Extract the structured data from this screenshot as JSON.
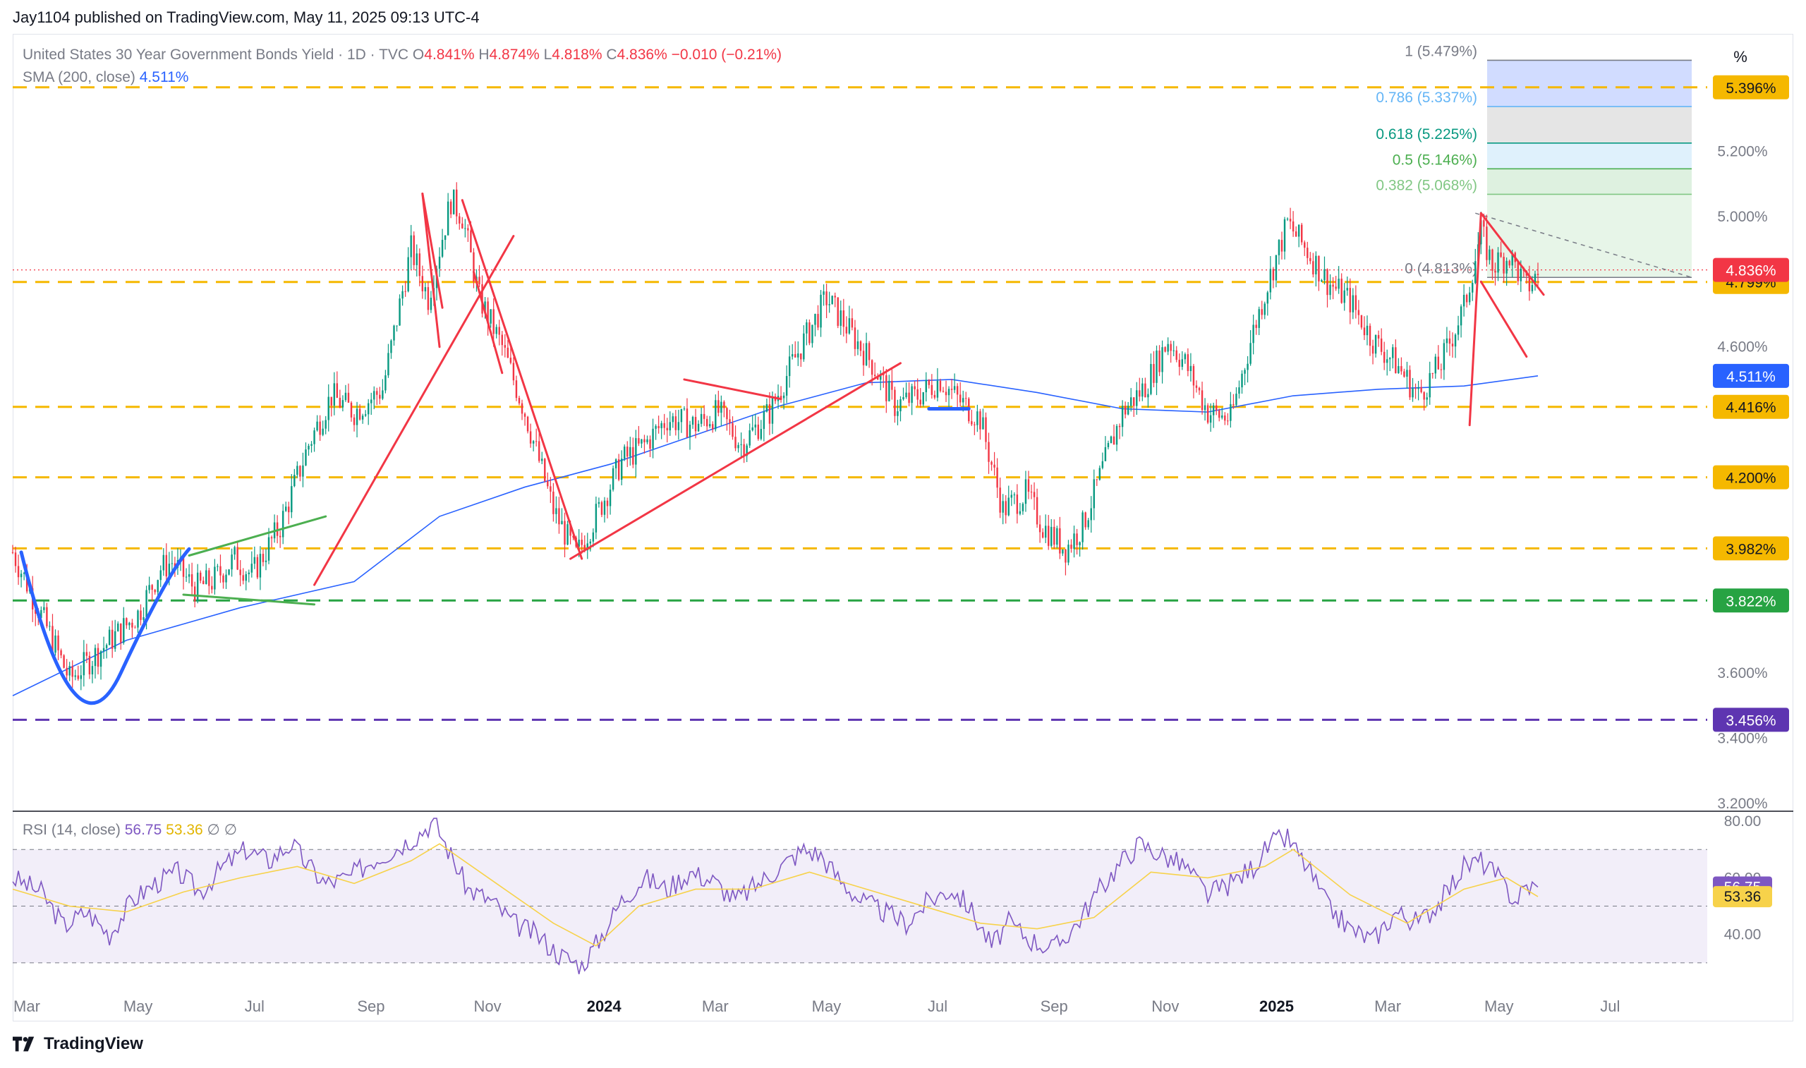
{
  "header": {
    "publisher_line": "Jay1104 published on TradingView.com, May 11, 2025 09:13 UTC-4"
  },
  "legend": {
    "symbol": "United States 30 Year Government Bonds Yield · 1D · TVC",
    "o_label": "O",
    "o_value": "4.841%",
    "h_label": "H",
    "h_value": "4.874%",
    "l_label": "L",
    "l_value": "4.818%",
    "c_label": "C",
    "c_value": "4.836%",
    "change": "−0.010 (−0.21%)",
    "sma_label": "SMA (200, close)",
    "sma_value": "4.511%",
    "rsi_label": "RSI (14, close)",
    "rsi_value": "56.75",
    "rsi_ma_value": "53.36",
    "null_glyph_1": "∅",
    "null_glyph_2": "∅"
  },
  "toolbar": {
    "percent_button": "%"
  },
  "brand": {
    "name": "TradingView",
    "icon": "tradingview-logo-icon"
  },
  "colors": {
    "up": "#089981",
    "down": "#f23645",
    "sma": "#2962ff",
    "level": "#f5b800",
    "support_green": "#27a343",
    "support_purple": "#5e35b1",
    "trend_red": "#f23645",
    "trend_green": "#4caf50",
    "cup_blue": "#2962ff",
    "rsi_line": "#7e57c2",
    "rsi_ma": "#f7d24a"
  },
  "chart_data": {
    "type": "candlestick",
    "title": "United States 30 Year Government Bonds Yield · 1D · TVC",
    "y_unit": "%",
    "ylim": [
      3.18,
      5.56
    ],
    "x_ticks": [
      "Mar",
      "May",
      "Jul",
      "Sep",
      "Nov",
      "2024",
      "Mar",
      "May",
      "Jul",
      "Sep",
      "Nov",
      "2025",
      "Mar",
      "May",
      "Jul"
    ],
    "x_tick_bold": [
      false,
      false,
      false,
      false,
      false,
      true,
      false,
      false,
      false,
      false,
      false,
      true,
      false,
      false,
      false
    ],
    "y_ticks": [
      "5.200%",
      "5.000%",
      "4.600%",
      "3.600%",
      "3.400%",
      "3.200%"
    ],
    "y_tick_values": [
      5.2,
      5.0,
      4.6,
      3.6,
      3.4,
      3.2
    ],
    "price_path": [
      [
        0,
        3.97
      ],
      [
        14,
        3.7
      ],
      [
        20,
        3.58
      ],
      [
        32,
        3.68
      ],
      [
        44,
        3.78
      ],
      [
        52,
        3.92
      ],
      [
        56,
        3.94
      ],
      [
        64,
        3.86
      ],
      [
        70,
        3.88
      ],
      [
        78,
        3.95
      ],
      [
        84,
        3.9
      ],
      [
        94,
        4.05
      ],
      [
        104,
        4.3
      ],
      [
        112,
        4.45
      ],
      [
        120,
        4.4
      ],
      [
        130,
        4.47
      ],
      [
        140,
        4.9
      ],
      [
        146,
        4.75
      ],
      [
        154,
        5.05
      ],
      [
        158,
        5.0
      ],
      [
        164,
        4.75
      ],
      [
        172,
        4.6
      ],
      [
        180,
        4.4
      ],
      [
        190,
        4.1
      ],
      [
        198,
        3.96
      ],
      [
        206,
        4.1
      ],
      [
        214,
        4.25
      ],
      [
        222,
        4.3
      ],
      [
        230,
        4.38
      ],
      [
        240,
        4.36
      ],
      [
        248,
        4.4
      ],
      [
        256,
        4.3
      ],
      [
        266,
        4.4
      ],
      [
        274,
        4.55
      ],
      [
        286,
        4.75
      ],
      [
        294,
        4.65
      ],
      [
        302,
        4.55
      ],
      [
        310,
        4.42
      ],
      [
        318,
        4.45
      ],
      [
        326,
        4.5
      ],
      [
        332,
        4.44
      ],
      [
        340,
        4.38
      ],
      [
        348,
        4.1
      ],
      [
        356,
        4.15
      ],
      [
        362,
        4.05
      ],
      [
        370,
        3.98
      ],
      [
        376,
        4.05
      ],
      [
        382,
        4.2
      ],
      [
        390,
        4.4
      ],
      [
        398,
        4.48
      ],
      [
        406,
        4.62
      ],
      [
        412,
        4.55
      ],
      [
        420,
        4.4
      ],
      [
        428,
        4.38
      ],
      [
        436,
        4.65
      ],
      [
        442,
        4.82
      ],
      [
        448,
        4.98
      ],
      [
        456,
        4.88
      ],
      [
        462,
        4.8
      ],
      [
        470,
        4.74
      ],
      [
        478,
        4.62
      ],
      [
        486,
        4.55
      ],
      [
        494,
        4.45
      ],
      [
        502,
        4.55
      ],
      [
        510,
        4.72
      ],
      [
        516,
        4.95
      ],
      [
        520,
        4.85
      ],
      [
        526,
        4.88
      ],
      [
        532,
        4.78
      ],
      [
        536,
        4.82
      ]
    ],
    "sma_path": [
      [
        0,
        3.53
      ],
      [
        40,
        3.7
      ],
      [
        80,
        3.8
      ],
      [
        120,
        3.88
      ],
      [
        150,
        4.08
      ],
      [
        180,
        4.17
      ],
      [
        210,
        4.24
      ],
      [
        240,
        4.33
      ],
      [
        270,
        4.42
      ],
      [
        300,
        4.49
      ],
      [
        330,
        4.5
      ],
      [
        360,
        4.46
      ],
      [
        390,
        4.41
      ],
      [
        420,
        4.4
      ],
      [
        450,
        4.45
      ],
      [
        480,
        4.47
      ],
      [
        510,
        4.48
      ],
      [
        536,
        4.511
      ]
    ],
    "sma_value": 4.511,
    "last_close": 4.836,
    "horizontal_levels": [
      {
        "value": 5.396,
        "label": "5.396%",
        "color": "#f5b800"
      },
      {
        "value": 4.799,
        "label": "4.799%",
        "color": "#f5b800"
      },
      {
        "value": 4.416,
        "label": "4.416%",
        "color": "#f5b800"
      },
      {
        "value": 4.2,
        "label": "4.200%",
        "color": "#f5b800"
      },
      {
        "value": 3.982,
        "label": "3.982%",
        "color": "#f5b800"
      },
      {
        "value": 3.822,
        "label": "3.822%",
        "color": "#27a343"
      },
      {
        "value": 3.456,
        "label": "3.456%",
        "color": "#5e35b1"
      }
    ],
    "fib": {
      "levels": [
        {
          "ratio": "1",
          "value": 5.479,
          "label": "1 (5.479%)",
          "color": "#787b86",
          "fill": "#c9d6ff"
        },
        {
          "ratio": "0.786",
          "value": 5.337,
          "label": "0.786 (5.337%)",
          "color": "#64b5f6",
          "fill": "#e1e1e1"
        },
        {
          "ratio": "0.618",
          "value": 5.225,
          "label": "0.618 (5.225%)",
          "color": "#089981",
          "fill": "#d9eefc"
        },
        {
          "ratio": "0.5",
          "value": 5.146,
          "label": "0.5 (5.146%)",
          "color": "#4caf50",
          "fill": "#d8efda"
        },
        {
          "ratio": "0.382",
          "value": 5.068,
          "label": "0.382 (5.068%)",
          "color": "#81c784",
          "fill": "#e3f3e4"
        },
        {
          "ratio": "0",
          "value": 4.813,
          "label": "0 (4.813%)",
          "color": "#787b86",
          "fill": "#e8f5e9"
        }
      ]
    },
    "price_badges": [
      {
        "value": 4.836,
        "label": "4.836%",
        "bg": "#f23645",
        "fg": "#ffffff"
      },
      {
        "value": 4.511,
        "label": "4.511%",
        "bg": "#2962ff",
        "fg": "#ffffff"
      }
    ],
    "rsi": {
      "ylim": [
        25,
        82
      ],
      "band": [
        30,
        70
      ],
      "mid": 50,
      "y_ticks": [
        "80.00",
        "60.00",
        "40.00"
      ],
      "y_tick_values": [
        80,
        60,
        40
      ],
      "last_rsi": 56.75,
      "last_ma": 53.36,
      "rsi_path": [
        [
          0,
          60
        ],
        [
          10,
          55
        ],
        [
          18,
          43
        ],
        [
          26,
          48
        ],
        [
          34,
          40
        ],
        [
          42,
          52
        ],
        [
          50,
          58
        ],
        [
          58,
          62
        ],
        [
          66,
          55
        ],
        [
          74,
          64
        ],
        [
          82,
          70
        ],
        [
          90,
          66
        ],
        [
          98,
          72
        ],
        [
          104,
          64
        ],
        [
          110,
          58
        ],
        [
          118,
          60
        ],
        [
          126,
          66
        ],
        [
          134,
          70
        ],
        [
          142,
          75
        ],
        [
          148,
          80
        ],
        [
          154,
          68
        ],
        [
          160,
          56
        ],
        [
          168,
          52
        ],
        [
          176,
          44
        ],
        [
          184,
          40
        ],
        [
          192,
          33
        ],
        [
          200,
          29
        ],
        [
          206,
          38
        ],
        [
          214,
          52
        ],
        [
          222,
          60
        ],
        [
          230,
          56
        ],
        [
          238,
          62
        ],
        [
          246,
          59
        ],
        [
          254,
          52
        ],
        [
          262,
          58
        ],
        [
          270,
          64
        ],
        [
          278,
          70
        ],
        [
          284,
          68
        ],
        [
          290,
          60
        ],
        [
          298,
          52
        ],
        [
          306,
          48
        ],
        [
          314,
          44
        ],
        [
          322,
          52
        ],
        [
          330,
          56
        ],
        [
          336,
          50
        ],
        [
          344,
          36
        ],
        [
          350,
          44
        ],
        [
          358,
          38
        ],
        [
          366,
          35
        ],
        [
          374,
          44
        ],
        [
          382,
          56
        ],
        [
          390,
          66
        ],
        [
          396,
          72
        ],
        [
          404,
          68
        ],
        [
          412,
          64
        ],
        [
          420,
          54
        ],
        [
          428,
          58
        ],
        [
          436,
          64
        ],
        [
          442,
          72
        ],
        [
          448,
          74
        ],
        [
          456,
          62
        ],
        [
          462,
          50
        ],
        [
          470,
          42
        ],
        [
          478,
          38
        ],
        [
          486,
          48
        ],
        [
          494,
          44
        ],
        [
          502,
          52
        ],
        [
          510,
          64
        ],
        [
          516,
          66
        ],
        [
          522,
          60
        ],
        [
          528,
          52
        ],
        [
          532,
          57
        ],
        [
          536,
          56.75
        ]
      ],
      "rsi_ma_path": [
        [
          0,
          56
        ],
        [
          20,
          50
        ],
        [
          40,
          48
        ],
        [
          60,
          55
        ],
        [
          80,
          60
        ],
        [
          100,
          64
        ],
        [
          120,
          58
        ],
        [
          140,
          66
        ],
        [
          150,
          72
        ],
        [
          170,
          58
        ],
        [
          190,
          44
        ],
        [
          205,
          36
        ],
        [
          220,
          50
        ],
        [
          240,
          56
        ],
        [
          260,
          56
        ],
        [
          280,
          62
        ],
        [
          300,
          56
        ],
        [
          320,
          50
        ],
        [
          340,
          44
        ],
        [
          360,
          42
        ],
        [
          380,
          46
        ],
        [
          400,
          62
        ],
        [
          420,
          60
        ],
        [
          440,
          64
        ],
        [
          450,
          70
        ],
        [
          470,
          54
        ],
        [
          490,
          44
        ],
        [
          510,
          56
        ],
        [
          525,
          60
        ],
        [
          536,
          53.36
        ]
      ]
    }
  }
}
